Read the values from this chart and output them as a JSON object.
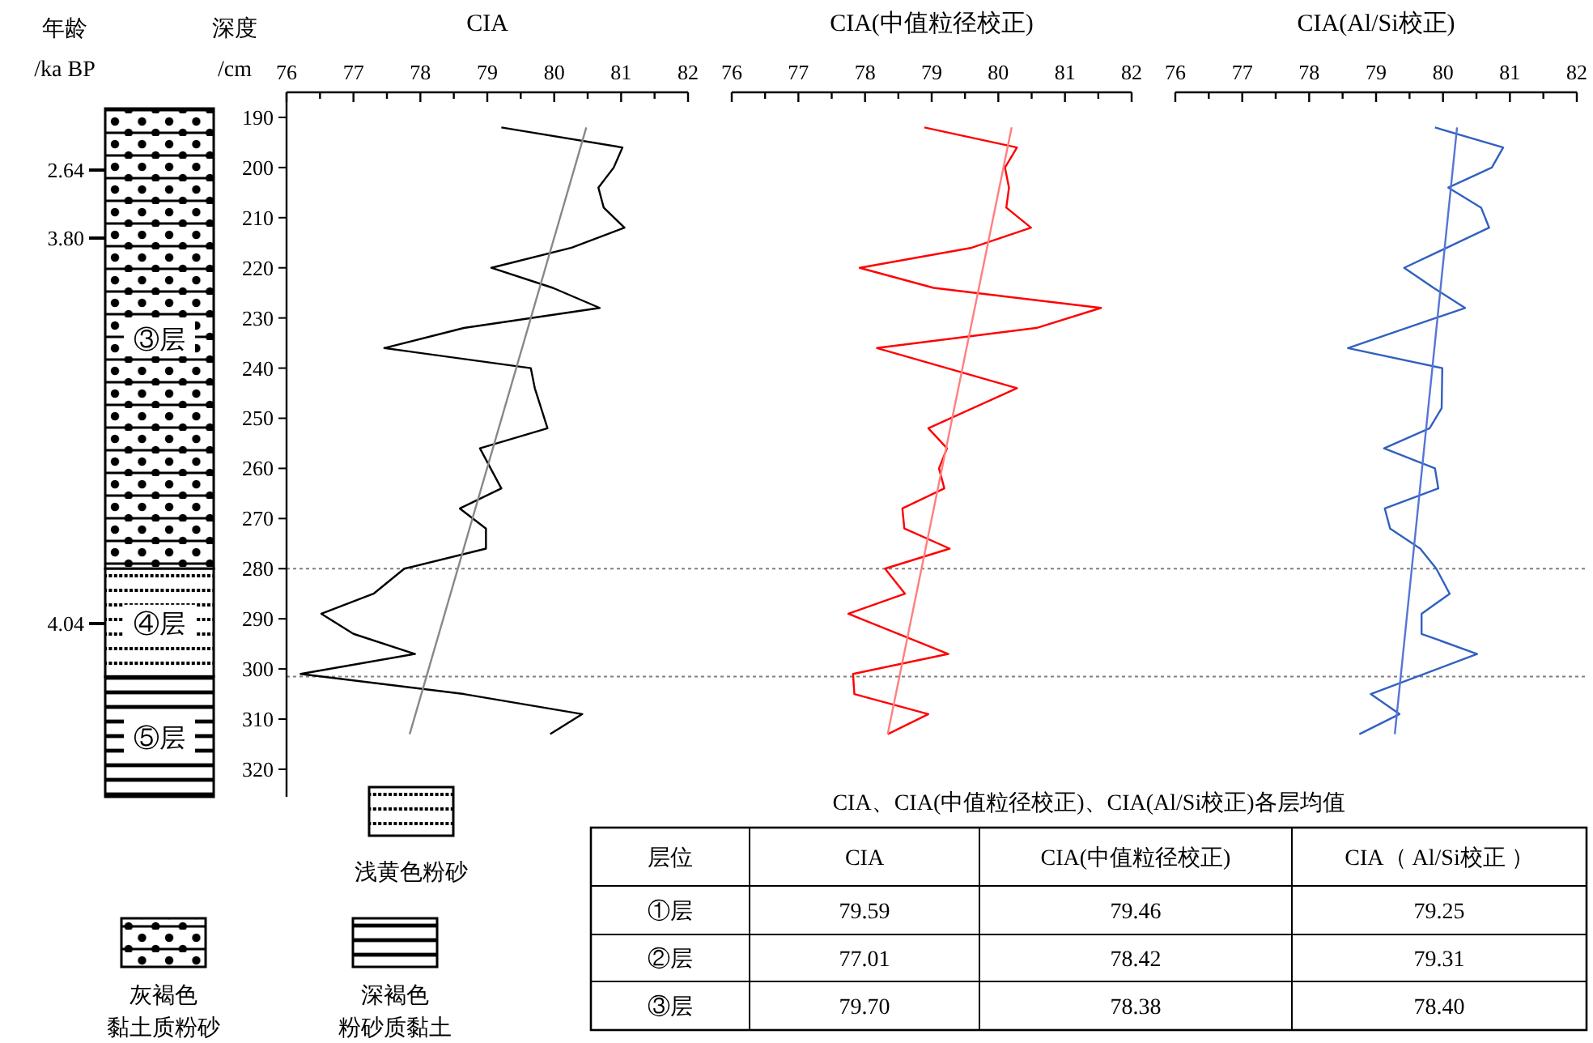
{
  "chart_data": [
    {
      "type": "line",
      "title": "CIA",
      "ylabel": "深度 /cm",
      "xlim": [
        76,
        82
      ],
      "xticks": [
        76,
        {
          "value": 76.5,
          "label": null
        },
        77,
        {
          "value": 77.5,
          "label": null
        },
        78,
        {
          "value": 78.5,
          "label": null
        },
        79,
        {
          "value": 79.5,
          "label": null
        },
        80,
        {
          "value": 80.5,
          "label": null
        },
        81,
        {
          "value": 81.5,
          "label": null
        },
        82
      ],
      "ylim": [
        325.5,
        185
      ],
      "yticks": [
        190,
        200,
        210,
        220,
        230,
        240,
        250,
        260,
        270,
        280,
        290,
        300,
        310,
        320
      ],
      "series": [
        {
          "color": "#000000",
          "x": [
            79.21,
            81.02,
            80.89,
            80.66,
            80.74,
            81.05,
            80.26,
            79.06,
            79.98,
            80.68,
            78.65,
            77.46,
            79.65,
            79.71,
            79.9,
            78.89,
            79.21,
            78.59,
            78.98,
            78.98,
            77.76,
            77.3,
            76.52,
            77.0,
            77.92,
            76.21,
            78.65,
            80.42,
            79.94
          ],
          "values": [
            192,
            196,
            200,
            204,
            208,
            212,
            216,
            220,
            224,
            228,
            232,
            236,
            240,
            244,
            252,
            256,
            264,
            268,
            272,
            276,
            280,
            285,
            289,
            293,
            297,
            301,
            305,
            309,
            313
          ]
        },
        {
          "color": "#888888",
          "x": [
            80.48,
            77.84
          ],
          "values": [
            192,
            313
          ]
        }
      ],
      "ref_lines": [
        {
          "axis": "y",
          "value": 280,
          "color": "#808080",
          "line_style": "dotted"
        },
        {
          "axis": "y",
          "value": 301.5,
          "color": "#808080",
          "line_style": "dotted"
        }
      ],
      "annotations": [
        "年龄",
        "/ka BP",
        "2.64",
        "3.80",
        "4.04",
        "③层",
        "④层",
        "⑤层",
        "浅黄色粉砂",
        "灰褐色",
        "黏土质粉砂",
        "深褐色",
        "粉砂质黏土"
      ]
    },
    {
      "type": "line",
      "title": "CIA(中值粒径校正)",
      "tick_labels": "x",
      "xlim": [
        76,
        82
      ],
      "xticks": [
        76,
        {
          "value": 76.5,
          "label": null
        },
        77,
        {
          "value": 77.5,
          "label": null
        },
        78,
        {
          "value": 78.5,
          "label": null
        },
        79,
        {
          "value": 79.5,
          "label": null
        },
        80,
        {
          "value": 80.5,
          "label": null
        },
        81,
        {
          "value": 81.5,
          "label": null
        },
        82
      ],
      "ylim": [
        320,
        190
      ],
      "yticks": [
        190,
        200,
        210,
        220,
        230,
        240,
        250,
        260,
        270,
        280,
        290,
        300,
        310,
        320
      ],
      "series": [
        {
          "color": "#ff0000",
          "x": [
            78.89,
            80.28,
            80.1,
            80.16,
            80.12,
            80.49,
            79.6,
            77.92,
            79.03,
            81.54,
            80.57,
            78.18,
            80.28,
            78.95,
            79.23,
            79.11,
            79.19,
            78.56,
            78.59,
            79.27,
            78.3,
            78.6,
            77.75,
            79.25,
            77.82,
            77.84,
            78.95,
            78.34
          ],
          "values": [
            192,
            196,
            200,
            204,
            208,
            212,
            216,
            220,
            224,
            228,
            232,
            236,
            244,
            252,
            256,
            260,
            264,
            268,
            272,
            276,
            280,
            285,
            289,
            297,
            301,
            305,
            309,
            313
          ]
        },
        {
          "color": "#ff7f7f",
          "x": [
            80.2,
            78.34
          ],
          "values": [
            192,
            313
          ]
        }
      ]
    },
    {
      "type": "line",
      "title": "CIA(Al/Si校正)",
      "tick_labels": "x",
      "xlim": [
        76,
        82
      ],
      "xticks": [
        76,
        {
          "value": 76.5,
          "label": null
        },
        77,
        {
          "value": 77.5,
          "label": null
        },
        78,
        {
          "value": 78.5,
          "label": null
        },
        79,
        {
          "value": 79.5,
          "label": null
        },
        80,
        {
          "value": 80.5,
          "label": null
        },
        81,
        {
          "value": 81.5,
          "label": null
        },
        82
      ],
      "ylim": [
        320,
        190
      ],
      "yticks": [
        190,
        200,
        210,
        220,
        230,
        240,
        250,
        260,
        270,
        280,
        290,
        300,
        310,
        320
      ],
      "series": [
        {
          "color": "#3060c0",
          "x": [
            79.88,
            80.9,
            80.73,
            80.08,
            80.57,
            80.69,
            79.42,
            79.86,
            80.33,
            78.58,
            79.99,
            79.98,
            79.8,
            79.12,
            79.88,
            79.93,
            79.13,
            79.21,
            79.66,
            79.9,
            80.1,
            79.68,
            79.68,
            80.51,
            78.92,
            79.35,
            78.75
          ],
          "values": [
            192,
            196,
            200,
            204,
            208,
            212,
            220,
            224,
            228,
            236,
            240,
            248,
            252,
            256,
            260,
            264,
            268,
            272,
            276,
            280,
            285,
            289,
            293,
            297,
            305,
            309,
            313
          ]
        },
        {
          "color": "#5575d5",
          "x": [
            80.21,
            79.28
          ],
          "values": [
            192,
            313
          ]
        }
      ]
    },
    {
      "type": "other",
      "title": "CIA、CIA(中值粒径校正)、CIA(Al/Si校正)各层均值",
      "legend_title": "层位",
      "categories": [
        "①层",
        "②层",
        "③层"
      ],
      "series": [
        {
          "name": "CIA",
          "values": [
            79.59,
            77.01,
            79.7
          ],
          "value_labels": [
            "79.59",
            "77.01",
            "79.70"
          ]
        },
        {
          "name": "CIA(中值粒径校正)",
          "values": [
            79.46,
            78.42,
            78.38
          ],
          "value_labels": [
            "79.46",
            "78.42",
            "78.38"
          ]
        },
        {
          "name": "CIA（ Al/Si校正 ）",
          "values": [
            79.25,
            79.31,
            78.4
          ],
          "value_labels": [
            "79.25",
            "79.31",
            "78.40"
          ]
        }
      ]
    }
  ]
}
